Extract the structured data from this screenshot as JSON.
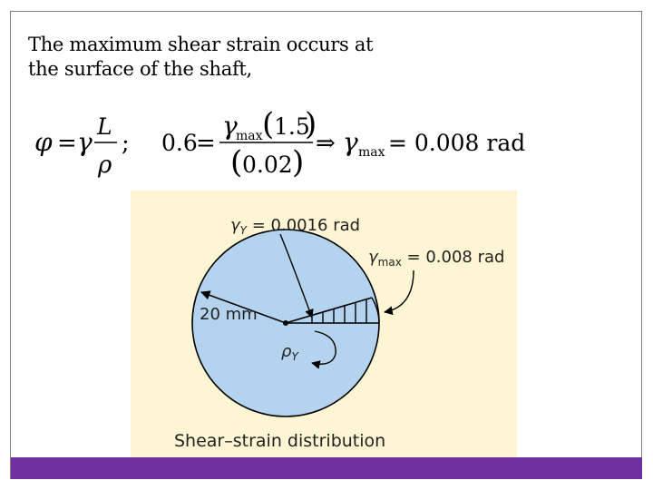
{
  "body_text": {
    "line1": "The maximum shear strain occurs at",
    "line2": "the surface of the shaft,"
  },
  "formula": {
    "phi": "φ",
    "eq": "=",
    "gamma": "γ",
    "L": "L",
    "rho": "ρ",
    "semicolon": ";",
    "lhs_value": "0.6",
    "gamma_sub": "max",
    "numerator_value": "1.5",
    "denominator_value": "0.02",
    "implies": "⇒",
    "result_value": "= 0.008 rad"
  },
  "figure": {
    "gamma_y_label_sym": "γ",
    "gamma_y_label_sub": "Y",
    "gamma_y_label_value": " = 0.0016 rad",
    "gamma_max_label_sym": "γ",
    "gamma_max_label_sub": "max",
    "gamma_max_label_value": " = 0.008 rad",
    "radius_label": "20 mm",
    "rho_y_label_sym": "ρ",
    "rho_y_label_sub": "Y",
    "caption": "Shear–strain distribution"
  },
  "colors": {
    "accent_bar": "#7030a0",
    "figure_bg": "#fdf5d3",
    "disk_fill": "#b3d3ee"
  }
}
